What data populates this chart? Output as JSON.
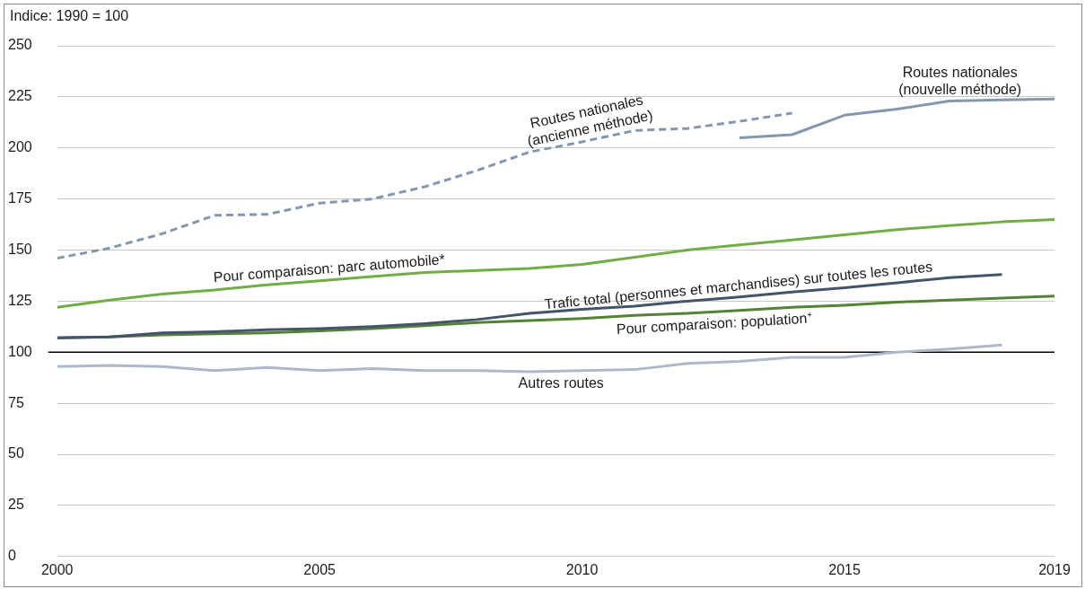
{
  "chart_data": {
    "type": "line",
    "ylabel": "Indice: 1990 = 100",
    "x": [
      2000,
      2001,
      2002,
      2003,
      2004,
      2005,
      2006,
      2007,
      2008,
      2009,
      2010,
      2011,
      2012,
      2013,
      2014,
      2015,
      2016,
      2017,
      2018,
      2019
    ],
    "series": [
      {
        "name": "Routes nationales (ancienne méthode)",
        "color": "#8497b0",
        "line_style": "dashed",
        "values": [
          146,
          151,
          158,
          167,
          167.5,
          173,
          175,
          181,
          189,
          198,
          203,
          208.5,
          209.5,
          213,
          217,
          null,
          null,
          null,
          null,
          null
        ]
      },
      {
        "name": "Routes nationales (nouvelle méthode)",
        "color": "#8497b0",
        "values": [
          null,
          null,
          null,
          null,
          null,
          null,
          null,
          null,
          null,
          null,
          null,
          null,
          null,
          205,
          206.5,
          216,
          219,
          223,
          223.5,
          224
        ]
      },
      {
        "name": "Pour comparaison: parc automobile*",
        "color": "#70ad47",
        "values": [
          122,
          125.5,
          128.5,
          130.5,
          133,
          135,
          137,
          139,
          140,
          141,
          143,
          146.5,
          150,
          152.5,
          155,
          157.5,
          160,
          162,
          163.8,
          165
        ]
      },
      {
        "name": "Trafic total (personnes et marchandises) sur toutes les routes",
        "color": "#44546a",
        "values": [
          107,
          107.5,
          109.5,
          110,
          111,
          111.5,
          112.5,
          114,
          116,
          119,
          121,
          122.5,
          125,
          127,
          129.5,
          131.5,
          134,
          136.5,
          138,
          null
        ]
      },
      {
        "name": "Pour comparaison: population⁺",
        "color": "#548235",
        "values": [
          107,
          107.5,
          108.5,
          109,
          109.5,
          110.5,
          111.5,
          113,
          114.5,
          115.5,
          116.5,
          118,
          119,
          120.5,
          122,
          123,
          124.5,
          125.5,
          126.5,
          127.5
        ]
      },
      {
        "name": "Autres routes",
        "color": "#adb9ca",
        "values": [
          93,
          93.5,
          93,
          91,
          92.5,
          91,
          92,
          91,
          91,
          90.5,
          91,
          91.5,
          94.5,
          95.5,
          97.5,
          97.5,
          100,
          101.5,
          103.5,
          null
        ]
      }
    ],
    "xlim": [
      2000,
      2019
    ],
    "xticks": [
      2000,
      2005,
      2010,
      2015,
      2019
    ],
    "ylim": [
      0,
      250
    ],
    "yticks": [
      0,
      25,
      50,
      75,
      100,
      125,
      150,
      175,
      200,
      225,
      250
    ],
    "ref_lines": [
      {
        "axis": "y",
        "value": 100,
        "color": "#000000"
      }
    ],
    "grid": "y",
    "legend": false,
    "marker": "none",
    "line_style": "solid"
  }
}
